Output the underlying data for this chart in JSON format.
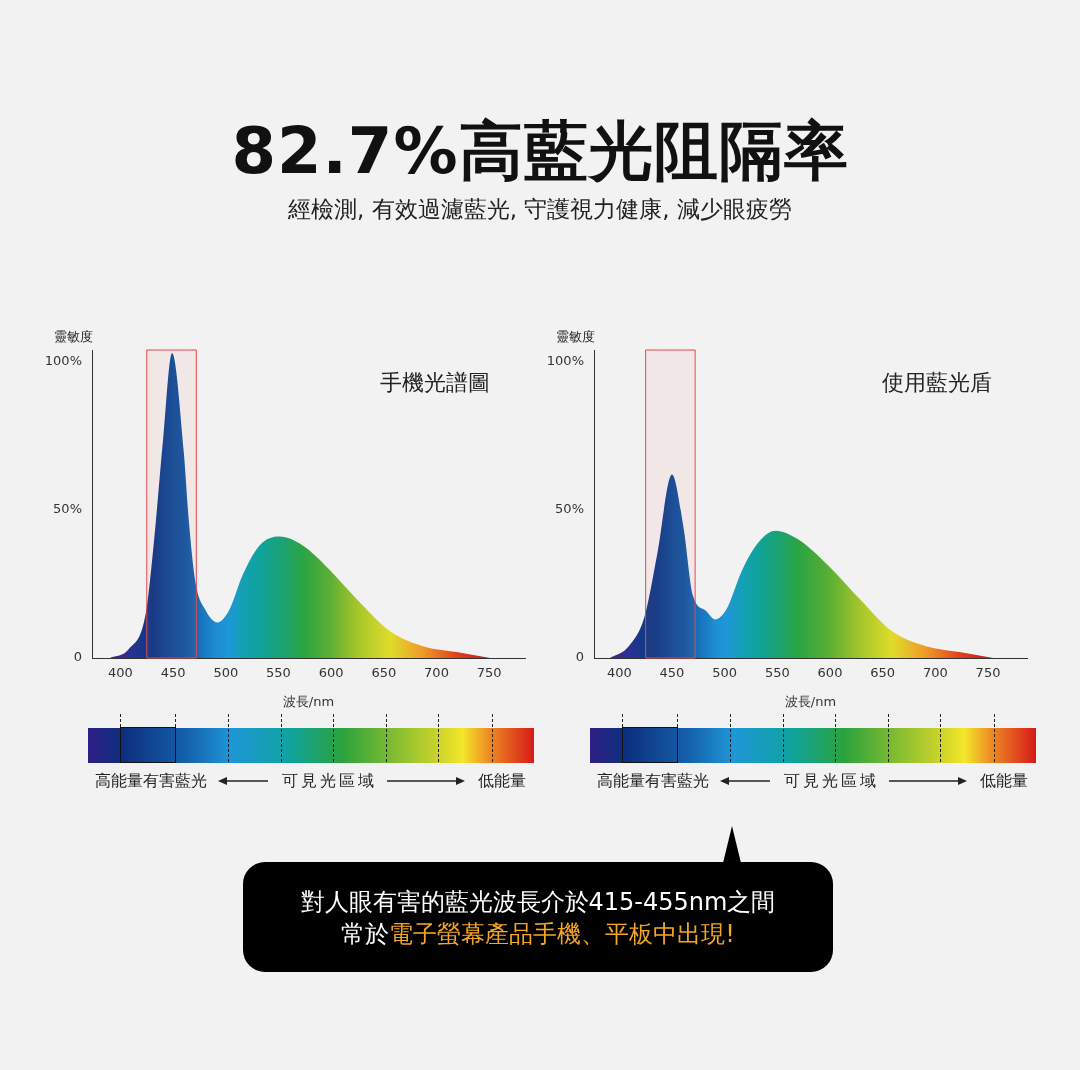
{
  "chart_data": [
    {
      "type": "other",
      "title": "82.7%高藍光阻隔率",
      "subtitle": "經檢測, 有效過濾藍光, 守護視力健康, 減少眼疲勞"
    },
    {
      "type": "area",
      "title": "手機光譜圖",
      "xlabel": "波長/nm",
      "ylabel": "靈敏度",
      "x": [
        390,
        408,
        424,
        432,
        440,
        449,
        460,
        465,
        471,
        481,
        492,
        503,
        516,
        532,
        551,
        573,
        598,
        624,
        656,
        687,
        719,
        751
      ],
      "series": [
        {
          "values": [
            0,
            3,
            15,
            40,
            72,
            103,
            70,
            46,
            26,
            16,
            12,
            16,
            28,
            38,
            41,
            38,
            30,
            20,
            9,
            4,
            2,
            0
          ],
          "colors": [
            "#3a2a8c",
            "#2c2f90",
            "#123a88",
            "#0c3a8a",
            "#0e4594",
            "#0f4f9c",
            "#1158a4",
            "#135fab",
            "#1766b2",
            "#1a7cc4",
            "#1d8ed3",
            "#1e97d8",
            "#14a0b5",
            "#0fa39c",
            "#1aa27a",
            "#2aa443",
            "#5aae35",
            "#a4c52a",
            "#e0dc2a",
            "#ee9a28",
            "#e0421d",
            "#d1101e"
          ]
        }
      ],
      "xlim": [
        373,
        784
      ],
      "xticks": [
        400,
        450,
        500,
        550,
        600,
        650,
        700,
        750
      ],
      "ylim": [
        0,
        104
      ],
      "yticks": [
        {
          "value": 0,
          "label": "0"
        },
        {
          "value": 50,
          "label": "50%"
        },
        {
          "value": 100,
          "label": "100%"
        }
      ],
      "bands": [
        {
          "axis": "x",
          "from": 425,
          "to": 472,
          "color": "#e8474c"
        }
      ],
      "grid": false,
      "legend": false,
      "annotations": [
        "高能量有害藍光",
        "可見光區域",
        "低能量"
      ]
    },
    {
      "type": "area",
      "title": "使用藍光盾",
      "xlabel": "波長/nm",
      "ylabel": "靈敏度",
      "x": [
        391,
        409,
        424,
        436,
        450,
        461,
        470,
        482,
        491,
        501,
        517,
        532,
        548,
        570,
        599,
        628,
        659,
        691,
        723,
        755
      ],
      "series": [
        {
          "values": [
            0,
            4,
            14,
            35,
            62,
            44,
            21,
            16,
            13,
            16,
            30,
            39,
            43,
            40,
            31,
            20,
            9,
            4,
            2,
            0
          ],
          "colors": [
            "#3a2a8c",
            "#2c2f90",
            "#123a88",
            "#0d3d8c",
            "#0f4f9c",
            "#1158a4",
            "#1766b2",
            "#1a7cc4",
            "#1d8ed3",
            "#1e97d8",
            "#14a0b5",
            "#0fa39c",
            "#1aa27a",
            "#2aa443",
            "#5aae35",
            "#a4c52a",
            "#e0dc2a",
            "#ee9a28",
            "#e0421d",
            "#d1101e"
          ]
        }
      ],
      "xlim": [
        376,
        787
      ],
      "xticks": [
        400,
        450,
        500,
        550,
        600,
        650,
        700,
        750
      ],
      "ylim": [
        0,
        104
      ],
      "yticks": [
        {
          "value": 0,
          "label": "0"
        },
        {
          "value": 50,
          "label": "50%"
        },
        {
          "value": 100,
          "label": "100%"
        }
      ],
      "bands": [
        {
          "axis": "x",
          "from": 425,
          "to": 472,
          "color": "#e8474c"
        }
      ],
      "grid": false,
      "legend": false,
      "annotations": [
        "高能量有害藍光",
        "可見光區域",
        "低能量"
      ]
    },
    {
      "type": "other",
      "annotations": [
        "對人眼有害的藍光波長介於415-455nm之間",
        "常於",
        "電子螢幕產品手機、平板中出現!"
      ]
    }
  ]
}
